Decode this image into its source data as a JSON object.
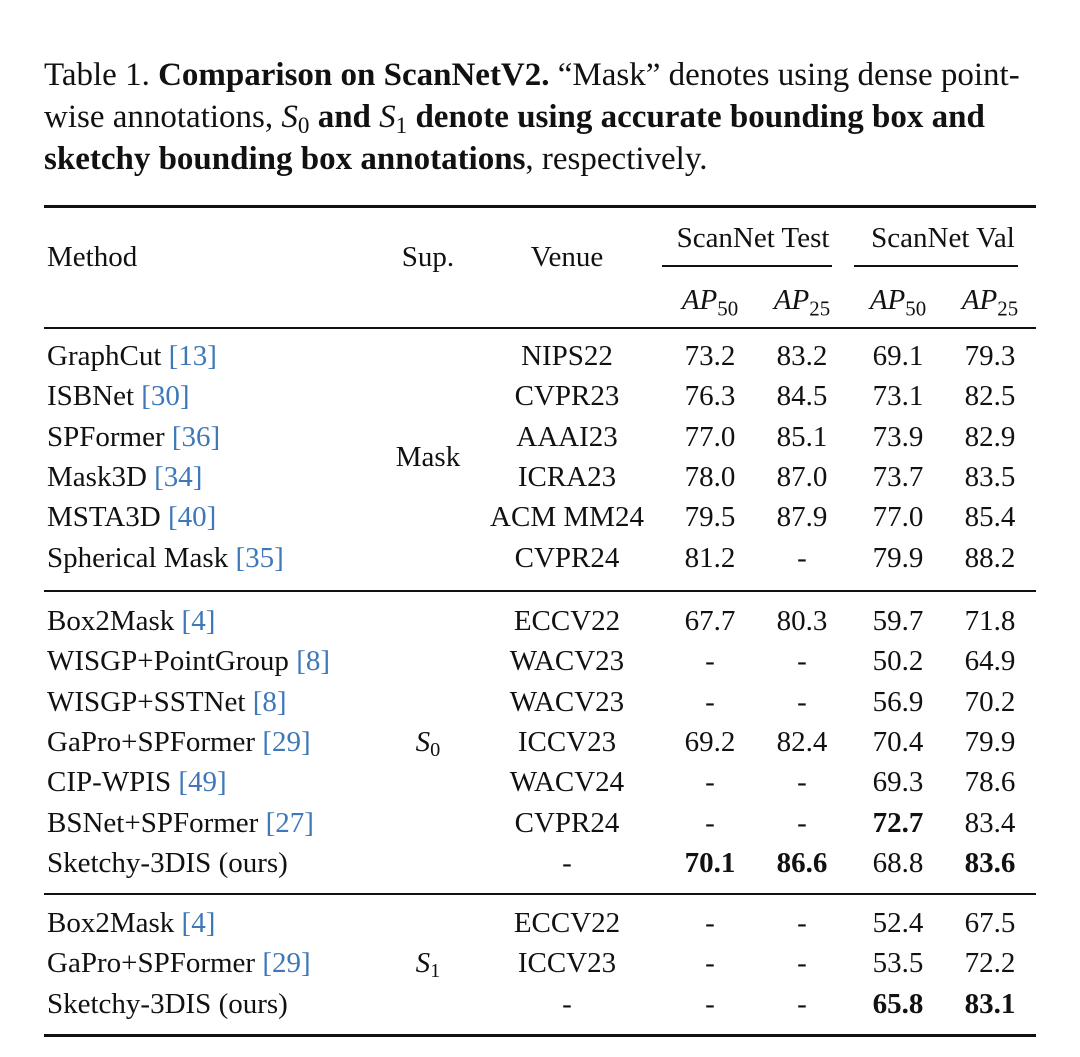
{
  "caption": {
    "table_label": "Table 1.",
    "title": "Comparison on ScanNetV2.",
    "text1": " “Mask” denotes using dense point-wise annotations, ",
    "s0_symbol": "S",
    "s0_sub": "0",
    "and_text": " and ",
    "s1_symbol": "S",
    "s1_sub": "1",
    "bold_rest": " denote using accurate bounding box and sketchy bounding box annotations",
    "text2": ", respectively."
  },
  "header": {
    "method": "Method",
    "sup": "Sup.",
    "venue": "Venue",
    "group_test": "ScanNet Test",
    "group_val": "ScanNet Val",
    "ap": "AP",
    "sub50": "50",
    "sub25": "25"
  },
  "groups": [
    {
      "sup": "Mask",
      "rows": [
        {
          "method": "GraphCut ",
          "cite": "[13]",
          "venue": "NIPS22",
          "t50": "73.2",
          "t25": "83.2",
          "v50": "69.1",
          "v25": "79.3"
        },
        {
          "method": "ISBNet ",
          "cite": "[30]",
          "venue": "CVPR23",
          "t50": "76.3",
          "t25": "84.5",
          "v50": "73.1",
          "v25": "82.5"
        },
        {
          "method": "SPFormer ",
          "cite": "[36]",
          "venue": "AAAI23",
          "t50": "77.0",
          "t25": "85.1",
          "v50": "73.9",
          "v25": "82.9"
        },
        {
          "method": "Mask3D ",
          "cite": "[34]",
          "venue": "ICRA23",
          "t50": "78.0",
          "t25": "87.0",
          "v50": "73.7",
          "v25": "83.5"
        },
        {
          "method": "MSTA3D ",
          "cite": "[40]",
          "venue": "ACM MM24",
          "t50": "79.5",
          "t25": "87.9",
          "v50": "77.0",
          "v25": "85.4"
        },
        {
          "method": "Spherical Mask ",
          "cite": "[35]",
          "venue": "CVPR24",
          "t50": "81.2",
          "t25": "-",
          "v50": "79.9",
          "v25": "88.2"
        }
      ]
    },
    {
      "sup_symbol": "S",
      "sup_sub": "0",
      "rows": [
        {
          "method": "Box2Mask ",
          "cite": "[4]",
          "venue": "ECCV22",
          "t50": "67.7",
          "t25": "80.3",
          "v50": "59.7",
          "v25": "71.8"
        },
        {
          "method": "WISGP+PointGroup ",
          "cite": "[8]",
          "venue": "WACV23",
          "t50": "-",
          "t25": "-",
          "v50": "50.2",
          "v25": "64.9"
        },
        {
          "method": "WISGP+SSTNet ",
          "cite": "[8]",
          "venue": "WACV23",
          "t50": "-",
          "t25": "-",
          "v50": "56.9",
          "v25": "70.2"
        },
        {
          "method": "GaPro+SPFormer ",
          "cite": "[29]",
          "venue": "ICCV23",
          "t50": "69.2",
          "t25": "82.4",
          "v50": "70.4",
          "v25": "79.9"
        },
        {
          "method": "CIP-WPIS ",
          "cite": "[49]",
          "venue": "WACV24",
          "t50": "-",
          "t25": "-",
          "v50": "69.3",
          "v25": "78.6"
        },
        {
          "method": "BSNet+SPFormer ",
          "cite": "[27]",
          "venue": "CVPR24",
          "t50": "-",
          "t25": "-",
          "v50": "72.7",
          "v25": "83.4",
          "bold": [
            "v50"
          ]
        },
        {
          "method": "Sketchy-3DIS (ours)",
          "cite": "",
          "venue": "-",
          "t50": "70.1",
          "t25": "86.6",
          "v50": "68.8",
          "v25": "83.6",
          "bold": [
            "t50",
            "t25",
            "v25"
          ]
        }
      ]
    },
    {
      "sup_symbol": "S",
      "sup_sub": "1",
      "rows": [
        {
          "method": "Box2Mask ",
          "cite": "[4]",
          "venue": "ECCV22",
          "t50": "-",
          "t25": "-",
          "v50": "52.4",
          "v25": "67.5"
        },
        {
          "method": "GaPro+SPFormer ",
          "cite": "[29]",
          "venue": "ICCV23",
          "t50": "-",
          "t25": "-",
          "v50": "53.5",
          "v25": "72.2"
        },
        {
          "method": "Sketchy-3DIS (ours)",
          "cite": "",
          "venue": "-",
          "t50": "-",
          "t25": "-",
          "v50": "65.8",
          "v25": "83.1",
          "bold": [
            "v50",
            "v25"
          ]
        }
      ]
    }
  ]
}
